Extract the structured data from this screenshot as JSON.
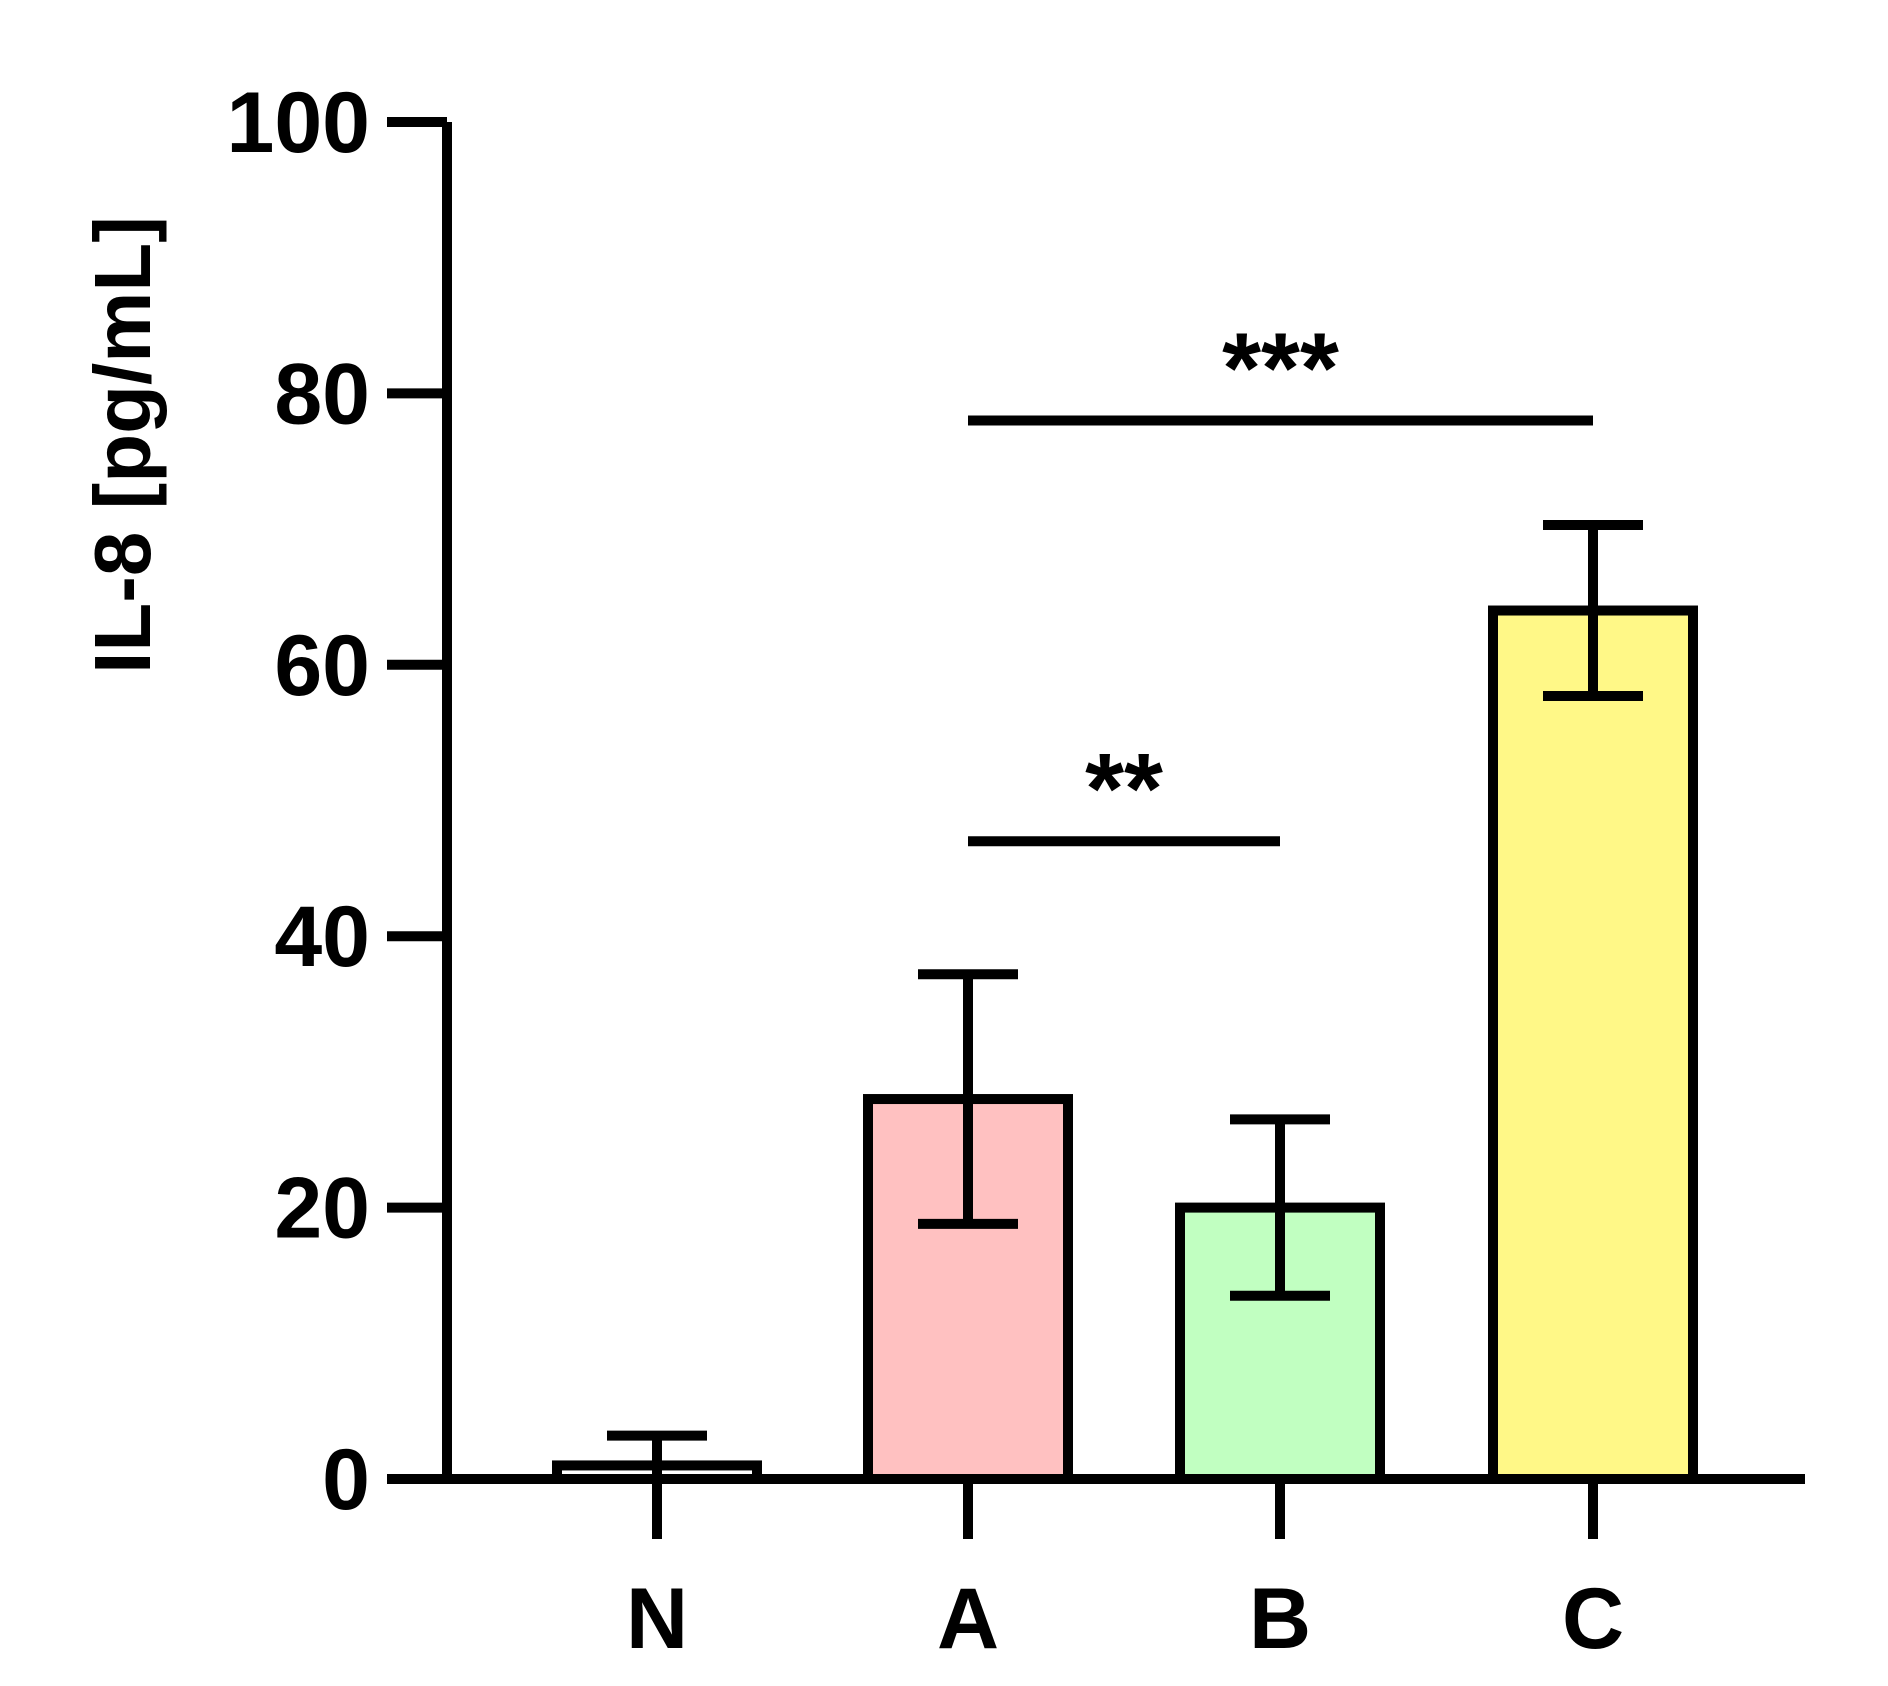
{
  "chart_data": {
    "type": "bar",
    "title": "",
    "xlabel": "",
    "ylabel": "IL-8 [pg/mL]",
    "ylim": [
      0,
      100
    ],
    "yticks": [
      "0",
      "20",
      "40",
      "60",
      "80",
      "100"
    ],
    "categories": [
      "N",
      "A",
      "B",
      "C"
    ],
    "values": [
      1,
      28,
      20,
      64
    ],
    "errors": [
      2.2,
      9.2,
      6.5,
      6.3
    ],
    "colors": [
      "#FFFFFF",
      "#FFC1C1",
      "#C1FFC1",
      "#FFF887"
    ],
    "grid": false,
    "legend": "none",
    "annotations": [
      {
        "label": "***",
        "from": "A",
        "to": "C",
        "y": 78
      },
      {
        "label": "**",
        "from": "A",
        "to": "B",
        "y": 47
      }
    ]
  }
}
